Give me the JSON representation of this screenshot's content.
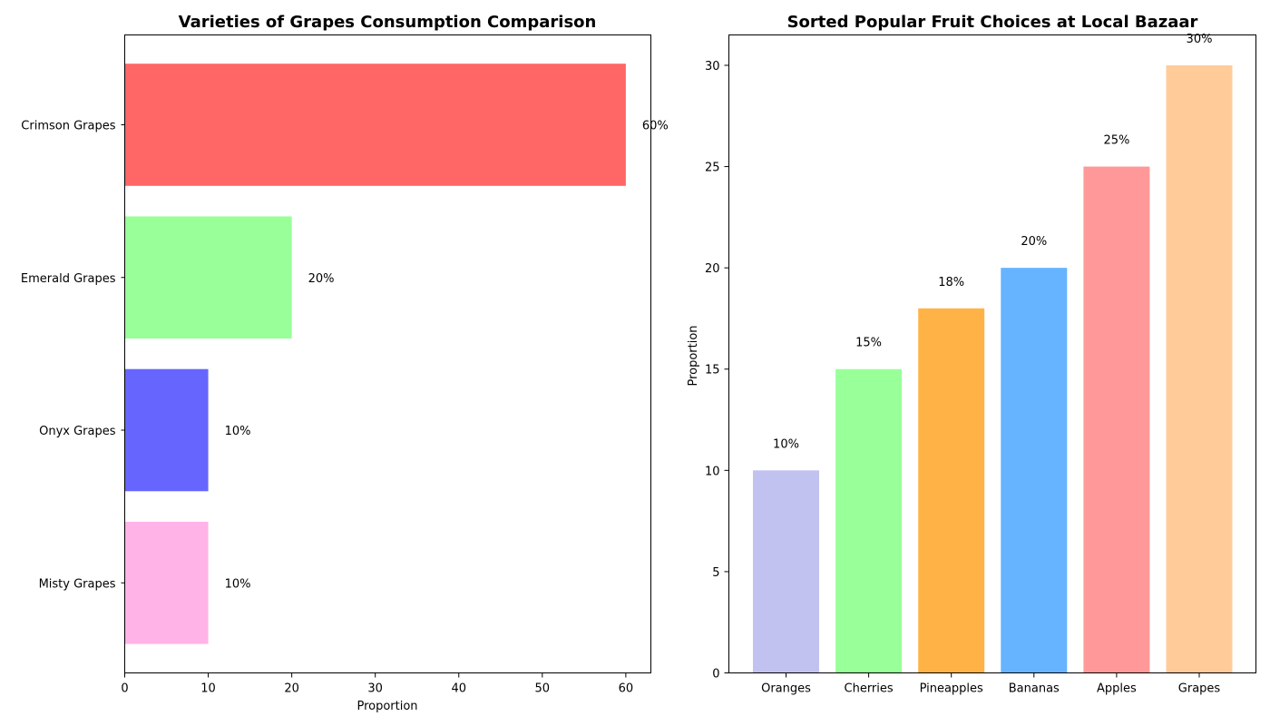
{
  "chart_data": [
    {
      "type": "bar",
      "orientation": "horizontal",
      "title": "Varieties of Grapes Consumption Comparison",
      "xlabel": "Proportion",
      "ylabel": "",
      "categories": [
        "Crimson Grapes",
        "Emerald Grapes",
        "Onyx Grapes",
        "Misty Grapes"
      ],
      "values": [
        60,
        20,
        10,
        10
      ],
      "labels": [
        "60%",
        "20%",
        "10%",
        "10%"
      ],
      "colors": [
        "#ff6666",
        "#99ff99",
        "#6666ff",
        "#ffb3e6"
      ],
      "xlim": [
        0,
        63
      ],
      "xticks": [
        0,
        10,
        20,
        30,
        40,
        50,
        60
      ],
      "grid": false
    },
    {
      "type": "bar",
      "orientation": "vertical",
      "title": "Sorted Popular Fruit Choices at Local Bazaar",
      "xlabel": "",
      "ylabel": "Proportion",
      "categories": [
        "Oranges",
        "Cherries",
        "Pineapples",
        "Bananas",
        "Apples",
        "Grapes"
      ],
      "values": [
        10,
        15,
        18,
        20,
        25,
        30
      ],
      "labels": [
        "10%",
        "15%",
        "18%",
        "20%",
        "25%",
        "30%"
      ],
      "colors": [
        "#c2c2f0",
        "#99ff99",
        "#ffb347",
        "#66b3ff",
        "#ff9999",
        "#ffcc99"
      ],
      "ylim": [
        0,
        31.5
      ],
      "yticks": [
        0,
        5,
        10,
        15,
        20,
        25,
        30
      ],
      "grid": false
    }
  ]
}
